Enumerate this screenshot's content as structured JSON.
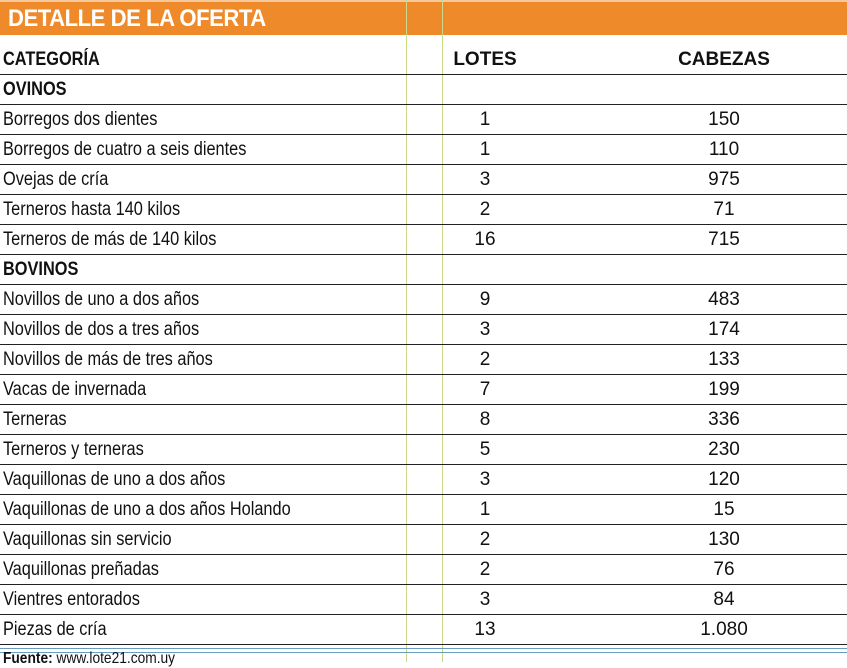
{
  "title": "DETALLE DE LA OFERTA",
  "headers": {
    "categoria": "CATEGORÍA",
    "lotes": "LOTES",
    "cabezas": "CABEZAS"
  },
  "sections": [
    {
      "name": "OVINOS",
      "rows": [
        {
          "categoria": "Borregos dos dientes",
          "lotes": "1",
          "cabezas": "150"
        },
        {
          "categoria": "Borregos de cuatro a seis dientes",
          "lotes": "1",
          "cabezas": "110"
        },
        {
          "categoria": "Ovejas de cría",
          "lotes": "3",
          "cabezas": "975"
        },
        {
          "categoria": "Terneros hasta 140 kilos",
          "lotes": "2",
          "cabezas": "71"
        },
        {
          "categoria": "Terneros de más de 140 kilos",
          "lotes": "16",
          "cabezas": "715"
        }
      ]
    },
    {
      "name": "BOVINOS",
      "rows": [
        {
          "categoria": "Novillos de uno a dos años",
          "lotes": "9",
          "cabezas": "483"
        },
        {
          "categoria": "Novillos de dos a tres años",
          "lotes": "3",
          "cabezas": "174"
        },
        {
          "categoria": "Novillos de más de tres años",
          "lotes": "2",
          "cabezas": "133"
        },
        {
          "categoria": "Vacas de invernada",
          "lotes": "7",
          "cabezas": "199"
        },
        {
          "categoria": "Terneras",
          "lotes": "8",
          "cabezas": "336"
        },
        {
          "categoria": "Terneros y terneras",
          "lotes": "5",
          "cabezas": "230"
        },
        {
          "categoria": "Vaquillonas de uno a dos años",
          "lotes": "3",
          "cabezas": "120"
        },
        {
          "categoria": "Vaquillonas de uno a dos años Holando",
          "lotes": "1",
          "cabezas": "15"
        },
        {
          "categoria": "Vaquillonas sin servicio",
          "lotes": "2",
          "cabezas": "130"
        },
        {
          "categoria": "Vaquillonas preñadas",
          "lotes": "2",
          "cabezas": "76"
        },
        {
          "categoria": "Vientres entorados",
          "lotes": "3",
          "cabezas": "84"
        },
        {
          "categoria": "Piezas de cría",
          "lotes": "13",
          "cabezas": "1.080"
        }
      ]
    }
  ],
  "footer": {
    "label": "Fuente:",
    "source": "www.lote21.com.uy"
  }
}
